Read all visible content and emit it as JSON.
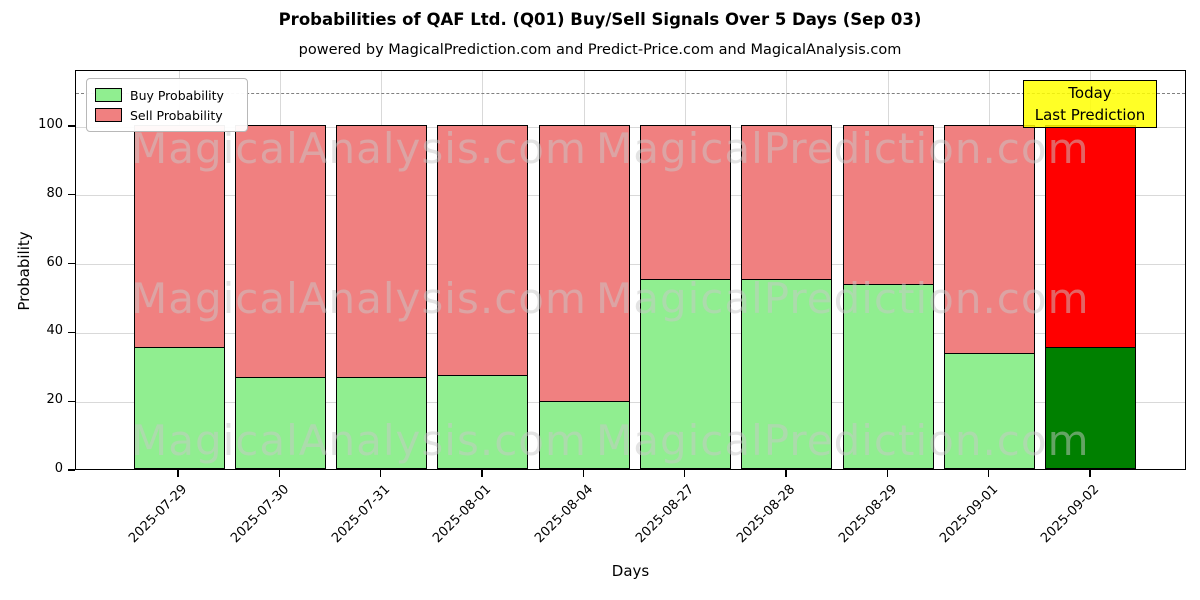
{
  "title": "Probabilities of QAF Ltd. (Q01) Buy/Sell Signals Over 5 Days (Sep 03)",
  "subtitle": "powered by MagicalPrediction.com and Predict-Price.com and MagicalAnalysis.com",
  "axes": {
    "ylabel": "Probability",
    "xlabel": "Days",
    "yticks": [
      0,
      20,
      40,
      60,
      80,
      100
    ],
    "ylim": [
      0,
      116.5
    ],
    "threshold_value": 110,
    "grid": "on"
  },
  "legend": {
    "position": "upper-left",
    "items": [
      {
        "label": "Buy Probability",
        "color": "#90ee90"
      },
      {
        "label": "Sell Probability",
        "color": "#f08080"
      }
    ]
  },
  "annotation": {
    "line1": "Today",
    "line2": "Last Prediction",
    "bg_color": "#ffff00"
  },
  "watermarks": [
    "MagicalAnalysis.com",
    "MagicalPrediction.com"
  ],
  "colors": {
    "buy": "#90ee90",
    "sell": "#f08080",
    "today_buy": "#008000",
    "today_sell": "#ff0000",
    "bar_edge": "#000000",
    "threshold_line": "#808080",
    "annotation_bg": "#ffff00"
  },
  "chart_data": {
    "type": "bar",
    "stacked": true,
    "title": "Probabilities of QAF Ltd. (Q01) Buy/Sell Signals Over 5 Days (Sep 03)",
    "xlabel": "Days",
    "ylabel": "Probability",
    "ylim": [
      0,
      116.5
    ],
    "legend_position": "upper left",
    "categories": [
      "2025-07-29",
      "2025-07-30",
      "2025-07-31",
      "2025-08-01",
      "2025-08-04",
      "2025-08-27",
      "2025-08-28",
      "2025-08-29",
      "2025-09-01",
      "2025-09-02"
    ],
    "series": [
      {
        "name": "Buy Probability",
        "values": [
          35.5,
          27,
          27,
          27.5,
          20,
          55.5,
          55.5,
          54,
          34,
          35.5
        ]
      },
      {
        "name": "Sell Probability",
        "values": [
          64.5,
          73,
          73,
          72.5,
          80,
          44.5,
          44.5,
          46,
          66,
          64.5
        ]
      }
    ],
    "today_index": 9,
    "threshold_dashed_line_y": 110
  }
}
